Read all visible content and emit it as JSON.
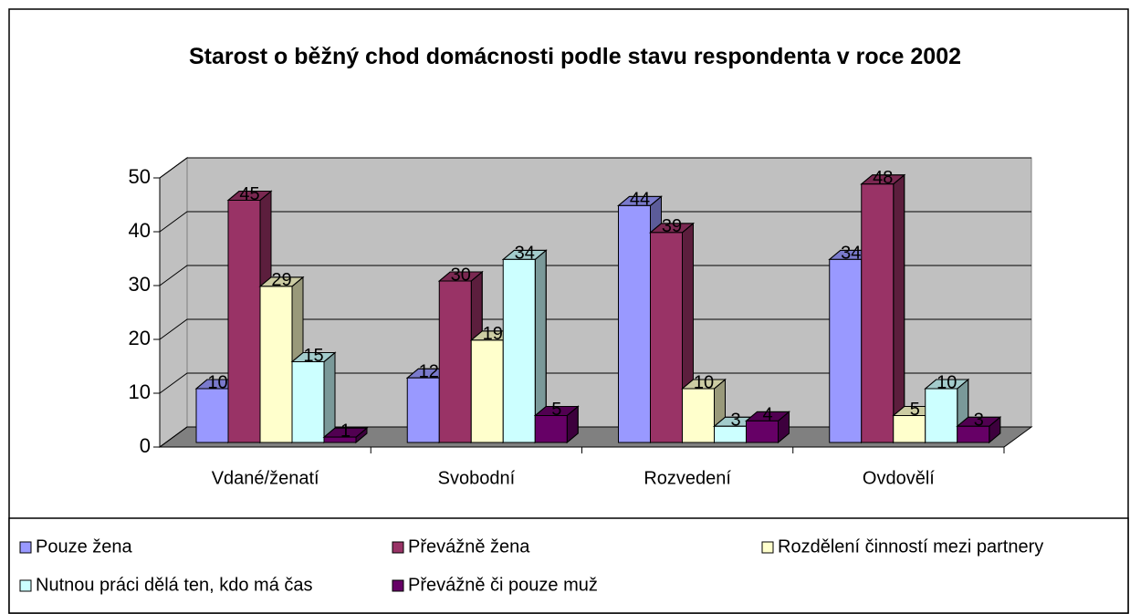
{
  "chart_data": {
    "type": "bar3d",
    "title": "Starost o běžný chod domácnosti podle stavu respondenta v roce 2002",
    "categories": [
      "Vdané/ženatí",
      "Svobodní",
      "Rozvedení",
      "Ovdovělí"
    ],
    "series": [
      {
        "name": "Pouze žena",
        "color": "#9999ff",
        "values": [
          10,
          12,
          44,
          34
        ]
      },
      {
        "name": "Převážně žena",
        "color": "#993366",
        "values": [
          45,
          30,
          39,
          48
        ]
      },
      {
        "name": "Rozdělení činností mezi partnery",
        "color": "#ffffcc",
        "values": [
          29,
          19,
          10,
          5
        ]
      },
      {
        "name": "Nutnou práci dělá ten, kdo má čas",
        "color": "#ccffff",
        "values": [
          15,
          34,
          3,
          10
        ]
      },
      {
        "name": "Převážně či pouze muž",
        "color": "#660066",
        "values": [
          1,
          5,
          4,
          3
        ]
      }
    ],
    "ylim": [
      0,
      50
    ],
    "yticks": [
      0,
      10,
      20,
      30,
      40,
      50
    ],
    "grid": true,
    "legend": "bottom"
  }
}
